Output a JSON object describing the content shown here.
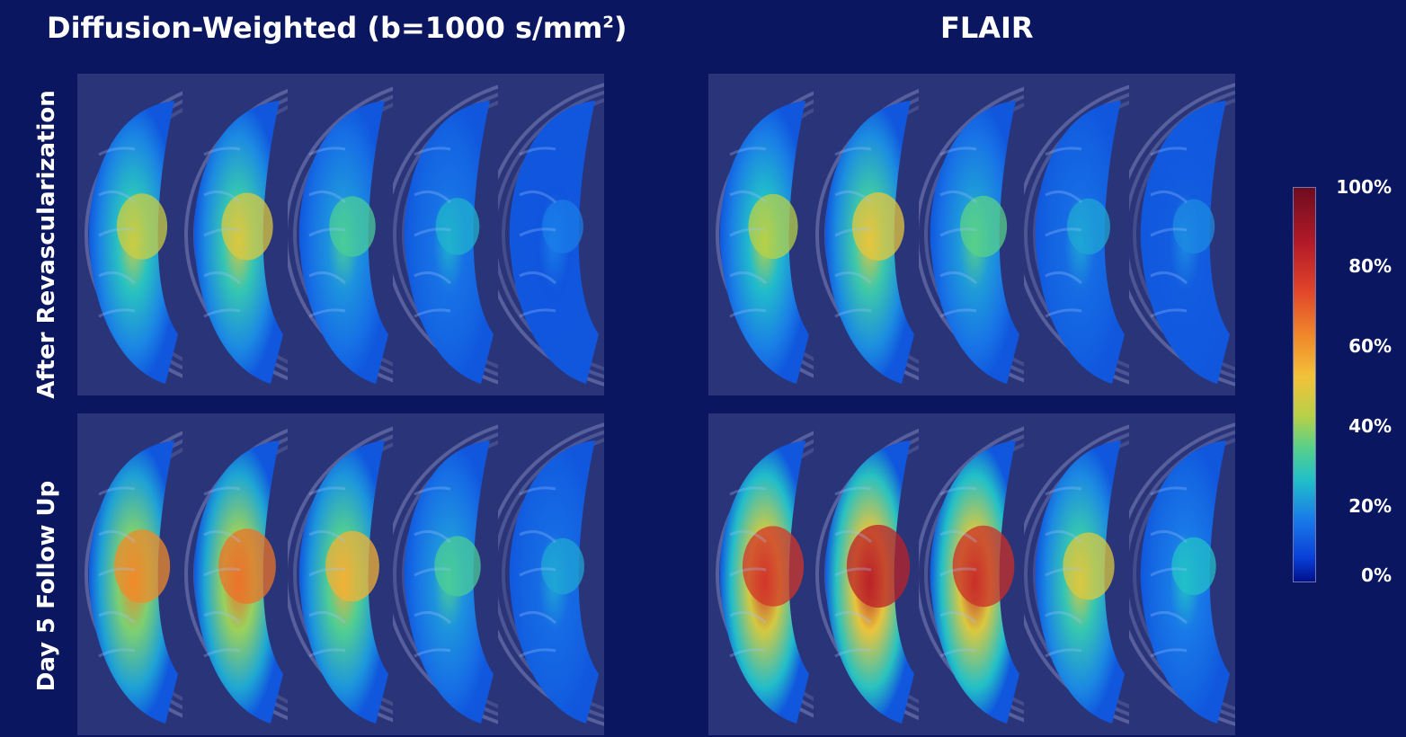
{
  "titles": {
    "dwi": "Diffusion-Weighted (b=1000 s/mm",
    "dwi_sup": "2",
    "dwi_end": ")",
    "flair": "FLAIR"
  },
  "rows": [
    "After Revascularization",
    "Day 5 Follow Up"
  ],
  "colorbar": {
    "ticks": [
      "100%",
      "80%",
      "60%",
      "40%",
      "20%",
      "0%"
    ],
    "colors": [
      "#00108a",
      "#1a7ce8",
      "#22c0c8",
      "#b7d048",
      "#f08a2a",
      "#b31a28",
      "#6e0c1e"
    ]
  },
  "panels": {
    "dwi": {
      "row1": [
        0.45,
        0.48,
        0.32,
        0.24,
        0.16
      ],
      "row2": [
        0.62,
        0.66,
        0.55,
        0.32,
        0.22
      ]
    },
    "flair": {
      "row1": [
        0.42,
        0.5,
        0.34,
        0.22,
        0.18
      ],
      "row2": [
        0.78,
        0.84,
        0.8,
        0.48,
        0.26
      ]
    }
  }
}
